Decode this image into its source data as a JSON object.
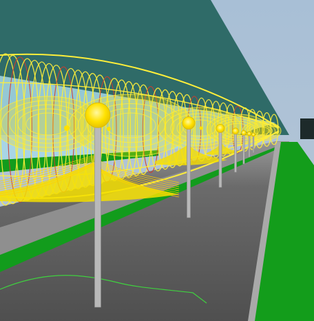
{
  "scene": {
    "description_hidden": "",
    "colors": {
      "sky": "#9fb4c9",
      "canopy": "#2e6a66",
      "road": "#5b5b5b",
      "road_light": "#777777",
      "grass": "#129c1c",
      "sidewalk": "#9a9a9a",
      "pole": "#b9b9b9",
      "lamp": "#ffe100",
      "light_yellow": "#ffef3a",
      "light_red": "#d23b2b",
      "pool_glow": "#f5df00"
    },
    "icons": {
      "lamp": "street-lamp-icon"
    }
  }
}
